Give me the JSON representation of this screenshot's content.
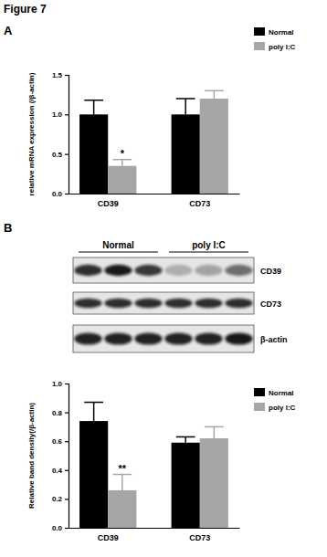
{
  "figure_title": "Figure 7",
  "blot": {
    "groups": [
      "Normal",
      "poly I:C"
    ],
    "rows": [
      "CD39",
      "CD73",
      "β-actin"
    ]
  },
  "chart_data": [
    {
      "type": "bar",
      "panel": "A",
      "y_label": "relative mRNA expression (/β-actin)",
      "categories": [
        "CD39",
        "CD73"
      ],
      "series": [
        {
          "name": "Normal",
          "color": "#000000",
          "values": [
            1.0,
            1.0
          ],
          "errors": [
            0.18,
            0.2
          ]
        },
        {
          "name": "poly I:C",
          "color": "#a6a6a6",
          "values": [
            0.35,
            1.2
          ],
          "errors": [
            0.08,
            0.1
          ]
        }
      ],
      "ylim": [
        0,
        1.5
      ],
      "yticks": [
        {
          "value": 0,
          "label": "0.0"
        },
        {
          "value": 0.5,
          "label": "0.5"
        },
        {
          "value": 1,
          "label": "1.0"
        },
        {
          "value": 1.5,
          "label": "1.5"
        }
      ],
      "legend": "right",
      "annotations": [
        {
          "text": "*",
          "category": "CD39",
          "series": "poly I:C"
        }
      ]
    },
    {
      "type": "bar",
      "panel": "B",
      "y_label": "Relative band density(/β-actin)",
      "categories": [
        "CD39",
        "CD73"
      ],
      "series": [
        {
          "name": "Normal",
          "color": "#000000",
          "values": [
            0.74,
            0.59
          ],
          "errors": [
            0.13,
            0.04
          ]
        },
        {
          "name": "poly I:C",
          "color": "#a6a6a6",
          "values": [
            0.26,
            0.62
          ],
          "errors": [
            0.11,
            0.08
          ]
        }
      ],
      "ylim": [
        0,
        1.0
      ],
      "yticks": [
        {
          "value": 0,
          "label": "0.0"
        },
        {
          "value": 0.2,
          "label": "0.2"
        },
        {
          "value": 0.4,
          "label": "0.4"
        },
        {
          "value": 0.6,
          "label": "0.6"
        },
        {
          "value": 0.8,
          "label": "0.8"
        },
        {
          "value": 1,
          "label": "1.0"
        }
      ],
      "legend": "right",
      "annotations": [
        {
          "text": "**",
          "category": "CD39",
          "series": "poly I:C"
        }
      ]
    }
  ]
}
